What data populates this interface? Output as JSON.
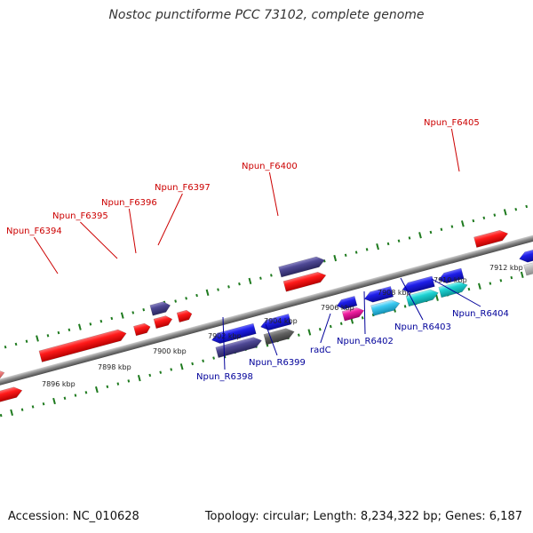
{
  "title": "Nostoc punctiforme PCC 73102, complete genome",
  "footer": {
    "accession_label": "Accession:",
    "accession": "NC_010628",
    "topology_label": "Topology:",
    "topology": "circular;",
    "length_label": "Length:",
    "length": "8,234,322 bp;",
    "genes_label": "Genes:",
    "genes": "6,187"
  },
  "ticks": [
    "7896 kbp",
    "7898 kbp",
    "7900 kbp",
    "7902 kbp",
    "7904 kbp",
    "7906 kbp",
    "7908 kbp",
    "7910 kbp",
    "7912 kbp"
  ],
  "forward_labels": [
    "Npun_F6394",
    "Npun_F6395",
    "Npun_F6396",
    "Npun_F6397",
    "Npun_F6400",
    "Npun_F6405"
  ],
  "reverse_labels": [
    "Npun_R6398",
    "Npun_R6399",
    "radC",
    "Npun_R6402",
    "Npun_R6403",
    "Npun_R6404"
  ],
  "colors": {
    "forward_gene": "#ff2020",
    "reverse_gene": "#2020ee",
    "label_forward": "#cc0000",
    "label_reverse": "#00009a",
    "tick": "#1e7a1e",
    "backbone": "#8a8a8a"
  }
}
